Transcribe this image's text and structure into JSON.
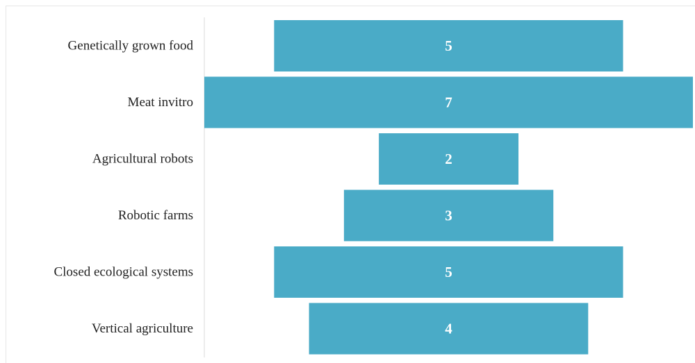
{
  "chart_data": {
    "type": "bar",
    "orientation": "horizontal",
    "style": "funnel (bars centered)",
    "categories": [
      "Genetically grown food",
      "Meat invitro",
      "Agricultural robots",
      "Robotic farms",
      "Closed ecological systems",
      "Vertical agriculture"
    ],
    "values": [
      5,
      7,
      2,
      3,
      5,
      4
    ],
    "title": "",
    "xlabel": "",
    "ylabel": "",
    "xlim": [
      0,
      7
    ],
    "grid": false,
    "legend": "none",
    "data_labels": true,
    "colors": {
      "bar": "#4AABC7",
      "label_text": "#222222",
      "value_text": "#FFFFFF",
      "axis_line": "#D9D9D9"
    }
  }
}
